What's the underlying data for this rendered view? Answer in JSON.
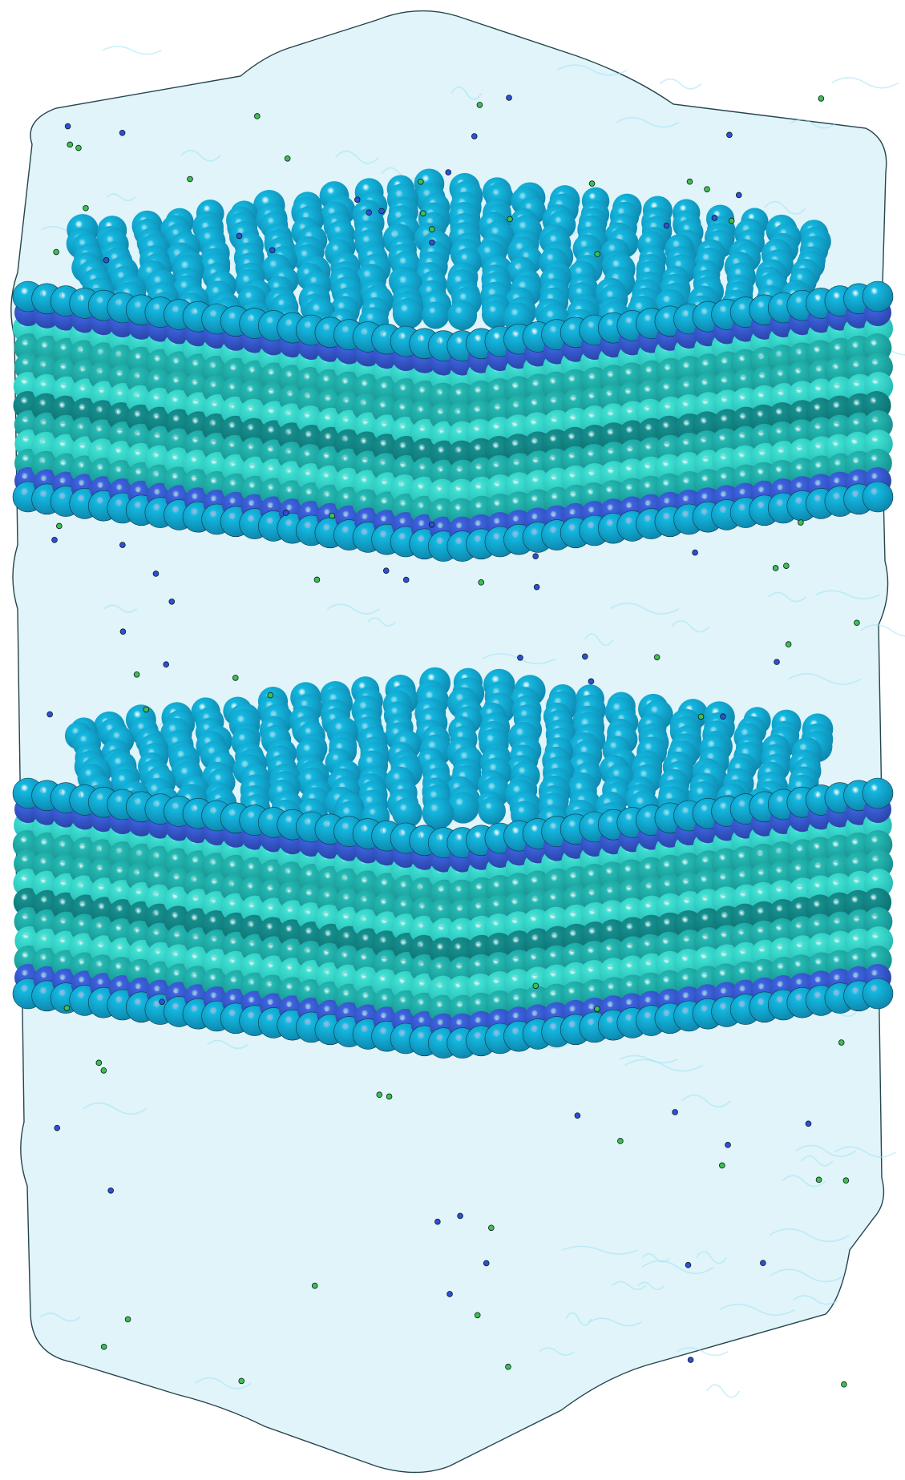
{
  "scene": {
    "subject": "lipid-bilayer-simulation-render",
    "bilayer_count": 2,
    "colors": {
      "background": "#ffffff",
      "water": "#dff4f9",
      "water_edge": "#1b3a44",
      "water_ripple": "#9fe3f5",
      "headgroup_top": "#14b8e0",
      "headgroup_dark": "#0e86ad",
      "phosphate": "#3d63e0",
      "tail_light": "#3fe0d2",
      "tail_mid": "#25b9b3",
      "tail_dark": "#168f8e",
      "ion_blue": "#2f4fd6",
      "ion_green": "#3fbf4c"
    }
  }
}
